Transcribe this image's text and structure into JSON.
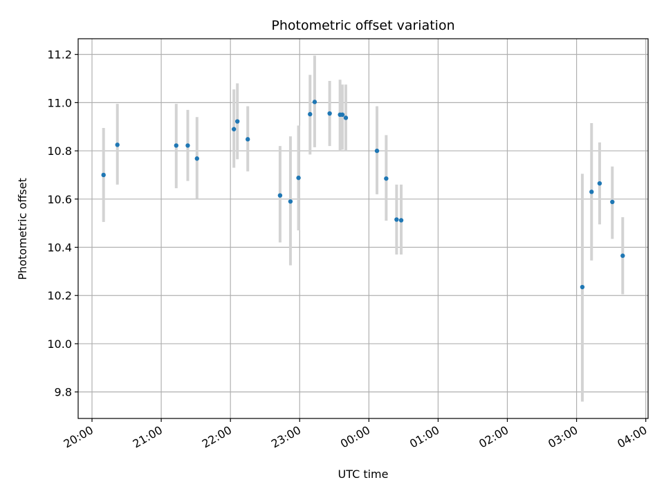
{
  "chart_data": {
    "type": "scatter",
    "title": "Photometric offset variation",
    "xlabel": "UTC time",
    "ylabel": "Photometric offset",
    "x_ticks": [
      "20:00",
      "21:00",
      "22:00",
      "23:00",
      "00:00",
      "01:00",
      "02:00",
      "03:00",
      "04:00"
    ],
    "y_ticks": [
      "9.8",
      "10.0",
      "10.2",
      "10.4",
      "10.6",
      "10.8",
      "11.0",
      "11.2"
    ],
    "x_axis_start": "19:48",
    "x_axis_end": "04:02",
    "ylim": [
      9.69,
      11.265
    ],
    "grid": true,
    "series": [
      {
        "points": [
          {
            "x": "20:10",
            "y": 10.7,
            "low": 10.505,
            "high": 10.895
          },
          {
            "x": "20:22",
            "y": 10.825,
            "low": 10.66,
            "high": 10.995
          },
          {
            "x": "21:13",
            "y": 10.822,
            "low": 10.645,
            "high": 10.995
          },
          {
            "x": "21:23",
            "y": 10.822,
            "low": 10.675,
            "high": 10.97
          },
          {
            "x": "21:31",
            "y": 10.768,
            "low": 10.6,
            "high": 10.94
          },
          {
            "x": "22:03",
            "y": 10.89,
            "low": 10.73,
            "high": 11.055
          },
          {
            "x": "22:06",
            "y": 10.922,
            "low": 10.765,
            "high": 11.08
          },
          {
            "x": "22:15",
            "y": 10.848,
            "low": 10.715,
            "high": 10.985
          },
          {
            "x": "22:43",
            "y": 10.615,
            "low": 10.42,
            "high": 10.82
          },
          {
            "x": "22:52",
            "y": 10.59,
            "low": 10.325,
            "high": 10.86
          },
          {
            "x": "22:59",
            "y": 10.688,
            "low": 10.47,
            "high": 10.905
          },
          {
            "x": "23:09",
            "y": 10.952,
            "low": 10.785,
            "high": 11.115
          },
          {
            "x": "23:13",
            "y": 11.003,
            "low": 10.815,
            "high": 11.195
          },
          {
            "x": "23:26",
            "y": 10.955,
            "low": 10.82,
            "high": 11.09
          },
          {
            "x": "23:35",
            "y": 10.95,
            "low": 10.8,
            "high": 11.095
          },
          {
            "x": "23:37",
            "y": 10.95,
            "low": 10.805,
            "high": 11.075
          },
          {
            "x": "23:40",
            "y": 10.937,
            "low": 10.8,
            "high": 11.075
          },
          {
            "x": "00:07",
            "y": 10.8,
            "low": 10.62,
            "high": 10.985
          },
          {
            "x": "00:15",
            "y": 10.685,
            "low": 10.51,
            "high": 10.865
          },
          {
            "x": "00:24",
            "y": 10.515,
            "low": 10.37,
            "high": 10.66
          },
          {
            "x": "00:28",
            "y": 10.512,
            "low": 10.37,
            "high": 10.66
          },
          {
            "x": "03:05",
            "y": 10.235,
            "low": 9.76,
            "high": 10.705
          },
          {
            "x": "03:13",
            "y": 10.63,
            "low": 10.345,
            "high": 10.915
          },
          {
            "x": "03:20",
            "y": 10.665,
            "low": 10.495,
            "high": 10.835
          },
          {
            "x": "03:31",
            "y": 10.588,
            "low": 10.435,
            "high": 10.735
          },
          {
            "x": "03:40",
            "y": 10.365,
            "low": 10.205,
            "high": 10.525
          }
        ]
      }
    ]
  },
  "colors": {
    "point": "#1f77b4",
    "errorbar": "#d3d3d3",
    "grid": "#b0b0b0",
    "axis": "#000000"
  }
}
